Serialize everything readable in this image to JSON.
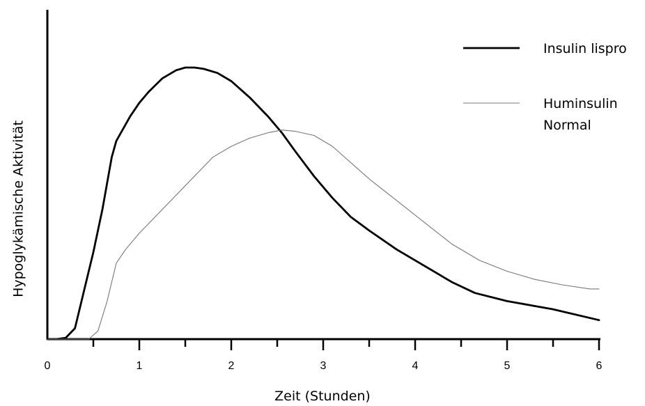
{
  "chart_data": {
    "type": "line",
    "title": "",
    "xlabel": "Zeit (Stunden)",
    "ylabel": "Hypoglykämische Aktivität",
    "xlim": [
      0,
      6
    ],
    "ylim": [
      0,
      1
    ],
    "x_ticks": [
      "0",
      "1",
      "2",
      "3",
      "4",
      "5",
      "6"
    ],
    "grid": false,
    "legend_position": "top-right",
    "series": [
      {
        "name": "Insulin lispro",
        "color": "#000000",
        "line_style": "thick",
        "points": [
          [
            0.0,
            0.0
          ],
          [
            0.1,
            0.0
          ],
          [
            0.2,
            0.005
          ],
          [
            0.3,
            0.04
          ],
          [
            0.4,
            0.18
          ],
          [
            0.5,
            0.32
          ],
          [
            0.6,
            0.48
          ],
          [
            0.7,
            0.67
          ],
          [
            0.75,
            0.73
          ],
          [
            0.85,
            0.79
          ],
          [
            0.9,
            0.82
          ],
          [
            1.0,
            0.87
          ],
          [
            1.1,
            0.91
          ],
          [
            1.25,
            0.96
          ],
          [
            1.4,
            0.99
          ],
          [
            1.5,
            1.0
          ],
          [
            1.6,
            1.0
          ],
          [
            1.7,
            0.995
          ],
          [
            1.85,
            0.98
          ],
          [
            2.0,
            0.95
          ],
          [
            2.2,
            0.89
          ],
          [
            2.4,
            0.82
          ],
          [
            2.55,
            0.76
          ],
          [
            2.7,
            0.69
          ],
          [
            2.9,
            0.6
          ],
          [
            3.1,
            0.52
          ],
          [
            3.3,
            0.45
          ],
          [
            3.5,
            0.4
          ],
          [
            3.8,
            0.33
          ],
          [
            4.1,
            0.27
          ],
          [
            4.4,
            0.21
          ],
          [
            4.65,
            0.17
          ],
          [
            5.0,
            0.14
          ],
          [
            5.5,
            0.11
          ],
          [
            6.0,
            0.07
          ]
        ]
      },
      {
        "name": "Huminsulin Normal",
        "color": "#777777",
        "line_style": "thin",
        "points": [
          [
            0.0,
            0.0
          ],
          [
            0.3,
            0.0
          ],
          [
            0.45,
            0.0
          ],
          [
            0.55,
            0.03
          ],
          [
            0.65,
            0.14
          ],
          [
            0.75,
            0.28
          ],
          [
            0.85,
            0.33
          ],
          [
            1.0,
            0.39
          ],
          [
            1.2,
            0.46
          ],
          [
            1.4,
            0.53
          ],
          [
            1.6,
            0.6
          ],
          [
            1.8,
            0.67
          ],
          [
            2.0,
            0.71
          ],
          [
            2.2,
            0.74
          ],
          [
            2.4,
            0.76
          ],
          [
            2.55,
            0.77
          ],
          [
            2.7,
            0.765
          ],
          [
            2.9,
            0.75
          ],
          [
            3.1,
            0.71
          ],
          [
            3.3,
            0.65
          ],
          [
            3.5,
            0.59
          ],
          [
            3.8,
            0.51
          ],
          [
            4.1,
            0.43
          ],
          [
            4.4,
            0.35
          ],
          [
            4.7,
            0.29
          ],
          [
            5.0,
            0.25
          ],
          [
            5.3,
            0.22
          ],
          [
            5.6,
            0.2
          ],
          [
            5.9,
            0.185
          ],
          [
            6.0,
            0.185
          ]
        ]
      }
    ],
    "legend": [
      {
        "label_lines": [
          "Insulin lispro"
        ]
      },
      {
        "label_lines": [
          "Huminsulin",
          "Normal"
        ]
      }
    ]
  }
}
